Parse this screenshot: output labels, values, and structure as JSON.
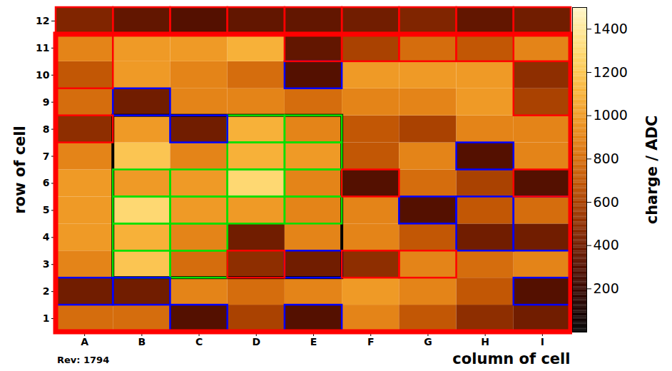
{
  "chart_data": {
    "type": "heatmap",
    "x_label": "column of cell",
    "y_label": "row of cell",
    "note": "Rev: 1794",
    "xlim": [
      0.5,
      9.5
    ],
    "xticks": [
      {
        "value": 1,
        "label": "A"
      },
      {
        "value": 2,
        "label": "B"
      },
      {
        "value": 3,
        "label": "C"
      },
      {
        "value": 4,
        "label": "D"
      },
      {
        "value": 5,
        "label": "E"
      },
      {
        "value": 6,
        "label": "F"
      },
      {
        "value": 7,
        "label": "G"
      },
      {
        "value": 8,
        "label": "H"
      },
      {
        "value": 9,
        "label": "I"
      }
    ],
    "ylim": [
      0.5,
      12.5
    ],
    "yticks": [
      1,
      2,
      3,
      4,
      5,
      6,
      7,
      8,
      9,
      10,
      11,
      12
    ],
    "rows": [
      1,
      2,
      3,
      4,
      5,
      6,
      7,
      8,
      9,
      10,
      11,
      12
    ],
    "values": [
      [
        800,
        800,
        300,
        600,
        300,
        900,
        700,
        500,
        400
      ],
      [
        400,
        400,
        900,
        800,
        900,
        1000,
        900,
        700,
        300
      ],
      [
        900,
        1200,
        800,
        500,
        400,
        500,
        900,
        800,
        900
      ],
      [
        1000,
        1100,
        900,
        400,
        900,
        900,
        700,
        400,
        400
      ],
      [
        1000,
        1300,
        1000,
        1000,
        900,
        900,
        300,
        700,
        800
      ],
      [
        1000,
        1000,
        1000,
        1300,
        900,
        300,
        800,
        600,
        300
      ],
      [
        900,
        1200,
        900,
        1100,
        1000,
        700,
        900,
        300,
        900
      ],
      [
        500,
        1000,
        400,
        1100,
        900,
        700,
        600,
        900,
        900
      ],
      [
        800,
        400,
        900,
        900,
        800,
        900,
        900,
        1000,
        600
      ],
      [
        700,
        1000,
        900,
        800,
        300,
        1000,
        1000,
        1000,
        500
      ],
      [
        900,
        1000,
        1000,
        1100,
        350,
        600,
        800,
        700,
        900
      ],
      [
        450,
        350,
        300,
        350,
        350,
        400,
        450,
        350,
        400
      ]
    ],
    "colorbar": {
      "label": "charge / ADC",
      "lim": [
        0,
        1500
      ],
      "ticks": [
        200,
        400,
        600,
        800,
        1000,
        1200,
        1400
      ]
    },
    "outlines": [
      {
        "color": "#000000",
        "line_style": "medium",
        "x1": 1.5,
        "x2": 5.5,
        "y1": 2.5,
        "y2": 8.5
      },
      {
        "color": "#00e000",
        "line_style": "solid",
        "x1": 3.5,
        "x2": 4.5,
        "y1": 7.5,
        "y2": 8.5
      },
      {
        "color": "#00e000",
        "line_style": "solid",
        "x1": 4.5,
        "x2": 5.5,
        "y1": 7.5,
        "y2": 8.5
      },
      {
        "color": "#00e000",
        "line_style": "solid",
        "x1": 3.5,
        "x2": 4.5,
        "y1": 6.5,
        "y2": 7.5
      },
      {
        "color": "#00e000",
        "line_style": "solid",
        "x1": 4.5,
        "x2": 5.5,
        "y1": 6.5,
        "y2": 7.5
      },
      {
        "color": "#00e000",
        "line_style": "solid",
        "x1": 1.5,
        "x2": 2.5,
        "y1": 5.5,
        "y2": 6.5
      },
      {
        "color": "#00e000",
        "line_style": "solid",
        "x1": 2.5,
        "x2": 3.5,
        "y1": 5.5,
        "y2": 6.5
      },
      {
        "color": "#00e000",
        "line_style": "solid",
        "x1": 3.5,
        "x2": 4.5,
        "y1": 5.5,
        "y2": 6.5
      },
      {
        "color": "#00e000",
        "line_style": "solid",
        "x1": 4.5,
        "x2": 5.5,
        "y1": 5.5,
        "y2": 6.5
      },
      {
        "color": "#00e000",
        "line_style": "solid",
        "x1": 1.5,
        "x2": 2.5,
        "y1": 4.5,
        "y2": 5.5
      },
      {
        "color": "#00e000",
        "line_style": "solid",
        "x1": 2.5,
        "x2": 3.5,
        "y1": 4.5,
        "y2": 5.5
      },
      {
        "color": "#00e000",
        "line_style": "solid",
        "x1": 3.5,
        "x2": 4.5,
        "y1": 4.5,
        "y2": 5.5
      },
      {
        "color": "#00e000",
        "line_style": "solid",
        "x1": 4.5,
        "x2": 5.5,
        "y1": 4.5,
        "y2": 5.5
      },
      {
        "color": "#00e000",
        "line_style": "solid",
        "x1": 1.5,
        "x2": 2.5,
        "y1": 3.5,
        "y2": 4.5
      },
      {
        "color": "#00e000",
        "line_style": "solid",
        "x1": 2.5,
        "x2": 3.5,
        "y1": 3.5,
        "y2": 4.5
      },
      {
        "color": "#00e000",
        "line_style": "solid",
        "x1": 1.5,
        "x2": 2.5,
        "y1": 2.5,
        "y2": 3.5
      },
      {
        "color": "#00e000",
        "line_style": "solid",
        "x1": 2.5,
        "x2": 3.5,
        "y1": 2.5,
        "y2": 3.5
      },
      {
        "color": "#0000ff",
        "line_style": "solid",
        "x1": 4.5,
        "x2": 5.5,
        "y1": 9.5,
        "y2": 10.5
      },
      {
        "color": "#0000ff",
        "line_style": "solid",
        "x1": 1.5,
        "x2": 2.5,
        "y1": 8.5,
        "y2": 9.5
      },
      {
        "color": "#0000ff",
        "line_style": "solid",
        "x1": 2.5,
        "x2": 3.5,
        "y1": 7.5,
        "y2": 8.5
      },
      {
        "color": "#0000ff",
        "line_style": "solid",
        "x1": 7.5,
        "x2": 8.5,
        "y1": 6.5,
        "y2": 7.5
      },
      {
        "color": "#0000ff",
        "line_style": "solid",
        "x1": 6.5,
        "x2": 7.5,
        "y1": 4.5,
        "y2": 5.5
      },
      {
        "color": "#0000ff",
        "line_style": "solid",
        "x1": 7.5,
        "x2": 8.5,
        "y1": 3.5,
        "y2": 5.5
      },
      {
        "color": "#0000ff",
        "line_style": "solid",
        "x1": 8.5,
        "x2": 9.5,
        "y1": 3.5,
        "y2": 5.5
      },
      {
        "color": "#0000ff",
        "line_style": "solid",
        "x1": 4.5,
        "x2": 5.5,
        "y1": 2.5,
        "y2": 3.5
      },
      {
        "color": "#0000ff",
        "line_style": "solid",
        "x1": 0.5,
        "x2": 1.5,
        "y1": 1.5,
        "y2": 2.5
      },
      {
        "color": "#0000ff",
        "line_style": "solid",
        "x1": 1.5,
        "x2": 2.5,
        "y1": 1.5,
        "y2": 2.5
      },
      {
        "color": "#0000ff",
        "line_style": "solid",
        "x1": 2.5,
        "x2": 3.5,
        "y1": 0.5,
        "y2": 1.5
      },
      {
        "color": "#0000ff",
        "line_style": "solid",
        "x1": 4.5,
        "x2": 5.5,
        "y1": 0.5,
        "y2": 1.5
      },
      {
        "color": "#0000ff",
        "line_style": "solid",
        "x1": 8.5,
        "x2": 9.5,
        "y1": 1.5,
        "y2": 2.5
      },
      {
        "color": "#ff0000",
        "line_style": "solid",
        "x1": 0.5,
        "x2": 1.5,
        "y1": 11.5,
        "y2": 12.5
      },
      {
        "color": "#ff0000",
        "line_style": "solid",
        "x1": 1.5,
        "x2": 2.5,
        "y1": 11.5,
        "y2": 12.5
      },
      {
        "color": "#ff0000",
        "line_style": "solid",
        "x1": 2.5,
        "x2": 3.5,
        "y1": 11.5,
        "y2": 12.5
      },
      {
        "color": "#ff0000",
        "line_style": "solid",
        "x1": 3.5,
        "x2": 4.5,
        "y1": 11.5,
        "y2": 12.5
      },
      {
        "color": "#ff0000",
        "line_style": "solid",
        "x1": 4.5,
        "x2": 5.5,
        "y1": 11.5,
        "y2": 12.5
      },
      {
        "color": "#ff0000",
        "line_style": "solid",
        "x1": 5.5,
        "x2": 6.5,
        "y1": 11.5,
        "y2": 12.5
      },
      {
        "color": "#ff0000",
        "line_style": "solid",
        "x1": 6.5,
        "x2": 7.5,
        "y1": 11.5,
        "y2": 12.5
      },
      {
        "color": "#ff0000",
        "line_style": "solid",
        "x1": 7.5,
        "x2": 8.5,
        "y1": 11.5,
        "y2": 12.5
      },
      {
        "color": "#ff0000",
        "line_style": "solid",
        "x1": 8.5,
        "x2": 9.5,
        "y1": 11.5,
        "y2": 12.5
      },
      {
        "color": "#ff0000",
        "line_style": "solid",
        "x1": 0.5,
        "x2": 1.5,
        "y1": 9.5,
        "y2": 11.5
      },
      {
        "color": "#ff0000",
        "line_style": "solid",
        "x1": 4.5,
        "x2": 5.5,
        "y1": 10.5,
        "y2": 11.5
      },
      {
        "color": "#ff0000",
        "line_style": "solid",
        "x1": 5.5,
        "x2": 6.5,
        "y1": 10.5,
        "y2": 11.5
      },
      {
        "color": "#ff0000",
        "line_style": "solid",
        "x1": 6.5,
        "x2": 7.5,
        "y1": 10.5,
        "y2": 11.5
      },
      {
        "color": "#ff0000",
        "line_style": "solid",
        "x1": 7.5,
        "x2": 8.5,
        "y1": 10.5,
        "y2": 11.5
      },
      {
        "color": "#ff0000",
        "line_style": "solid",
        "x1": 8.5,
        "x2": 9.5,
        "y1": 8.5,
        "y2": 10.5
      },
      {
        "color": "#ff0000",
        "line_style": "solid",
        "x1": 0.5,
        "x2": 1.5,
        "y1": 7.5,
        "y2": 8.5
      },
      {
        "color": "#ff0000",
        "line_style": "solid",
        "x1": 5.5,
        "x2": 6.5,
        "y1": 5.5,
        "y2": 6.5
      },
      {
        "color": "#ff0000",
        "line_style": "solid",
        "x1": 8.5,
        "x2": 9.5,
        "y1": 5.5,
        "y2": 6.5
      },
      {
        "color": "#ff0000",
        "line_style": "solid",
        "x1": 3.5,
        "x2": 4.5,
        "y1": 2.5,
        "y2": 3.5
      },
      {
        "color": "#ff0000",
        "line_style": "solid",
        "x1": 5.5,
        "x2": 6.5,
        "y1": 2.5,
        "y2": 3.5
      },
      {
        "color": "#ff0000",
        "line_style": "solid",
        "x1": 6.5,
        "x2": 7.5,
        "y1": 2.5,
        "y2": 3.5
      },
      {
        "color": "#ff0000",
        "line_style": "thick",
        "x1": 0.5,
        "x2": 9.5,
        "y1": 0.5,
        "y2": 11.5
      }
    ]
  }
}
